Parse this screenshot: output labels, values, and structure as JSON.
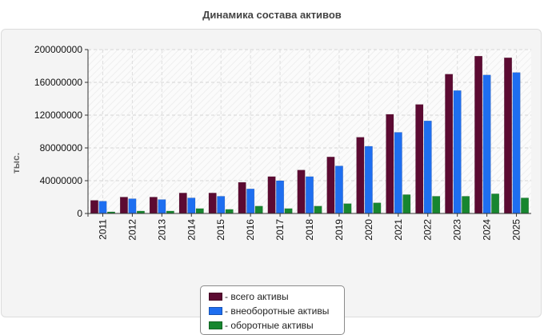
{
  "chart_data": {
    "type": "bar",
    "title": "Динамика состава активов",
    "ylabel": "тыс.",
    "xlabel": "",
    "ylim": [
      0,
      200000000
    ],
    "yticks": [
      0,
      40000000,
      80000000,
      120000000,
      160000000,
      200000000
    ],
    "grid": true,
    "legend_position": "bottom-center",
    "categories": [
      "2011",
      "2012",
      "2013",
      "2014",
      "2015",
      "2016",
      "2017",
      "2018",
      "2019",
      "2020",
      "2021",
      "2022",
      "2023",
      "2024",
      "2025"
    ],
    "series": [
      {
        "name": "- всего активы",
        "color": "#5c0a32",
        "values": [
          16000000,
          20000000,
          20000000,
          25000000,
          25000000,
          38000000,
          45000000,
          53000000,
          69000000,
          93000000,
          121000000,
          133000000,
          170000000,
          192000000,
          190000000
        ]
      },
      {
        "name": "- внеоборотные активы",
        "color": "#1e6ef0",
        "values": [
          15000000,
          18000000,
          17000000,
          19000000,
          21000000,
          30000000,
          40000000,
          45000000,
          58000000,
          82000000,
          99000000,
          113000000,
          150000000,
          169000000,
          172000000
        ]
      },
      {
        "name": "- оборотные активы",
        "color": "#17862f",
        "values": [
          2000000,
          3000000,
          3000000,
          6000000,
          5000000,
          9000000,
          6000000,
          9000000,
          12000000,
          13000000,
          23000000,
          21000000,
          21000000,
          24000000,
          19000000
        ]
      }
    ]
  }
}
